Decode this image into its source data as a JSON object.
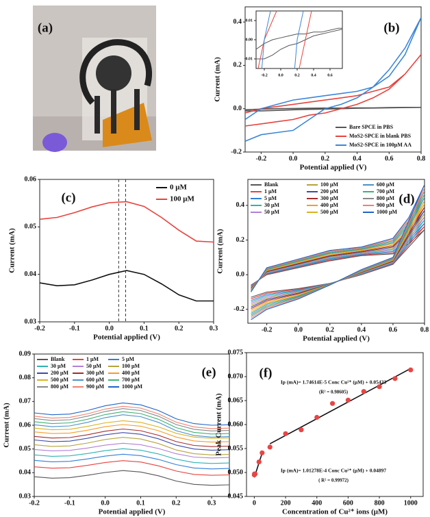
{
  "chart_data": [
    {
      "type": "image",
      "label": "(a)"
    },
    {
      "type": "line",
      "label": "(b)",
      "xlabel": "Potential applied (V)",
      "ylabel": "Current (mA)",
      "x": [
        -0.3,
        -0.2,
        -0.1,
        0,
        0.1,
        0.2,
        0.3,
        0.4,
        0.5,
        0.6,
        0.7,
        0.8,
        0.7,
        0.6,
        0.5,
        0.4,
        0.3,
        0.2,
        0.1,
        0,
        -0.1,
        -0.2,
        -0.3
      ],
      "series": [
        {
          "name": "Bare SPCE in PBS",
          "color": "#555555",
          "values": [
            -0.01,
            -0.01,
            -0.008,
            -0.005,
            -0.003,
            -0.002,
            0.0,
            0.002,
            0.003,
            0.004,
            0.005,
            0.006,
            0.006,
            0.005,
            0.004,
            0.004,
            0.003,
            0.003,
            0.002,
            0.001,
            0.0,
            -0.002,
            -0.005
          ]
        },
        {
          "name": "MoS2-SPCE in blank PBS",
          "color": "#e8413c",
          "values": [
            -0.08,
            -0.07,
            -0.06,
            -0.05,
            -0.03,
            -0.02,
            0.0,
            0.02,
            0.05,
            0.09,
            0.16,
            0.25,
            0.16,
            0.1,
            0.08,
            0.06,
            0.05,
            0.04,
            0.03,
            0.02,
            0.01,
            0.0,
            -0.02
          ]
        },
        {
          "name": "MoS2-SPCE in 100μM AA",
          "color": "#3a86d8",
          "values": [
            -0.15,
            -0.12,
            -0.11,
            -0.1,
            -0.05,
            0.0,
            0.02,
            0.05,
            0.1,
            0.18,
            0.28,
            0.42,
            0.25,
            0.15,
            0.1,
            0.08,
            0.07,
            0.06,
            0.05,
            0.04,
            0.02,
            0.0,
            -0.05
          ]
        }
      ],
      "xlim": [
        -0.3,
        0.8
      ],
      "ylim": [
        -0.2,
        0.47
      ],
      "xticks": [
        -0.2,
        {
          "value": 0,
          "label": "0.0"
        },
        0.2,
        0.4,
        0.6,
        0.8
      ],
      "yticks": [
        -0.2,
        {
          "value": 0,
          "label": "0.0"
        },
        0.2,
        0.4
      ],
      "legend": "lower right",
      "inset": {
        "xlim": [
          -0.3,
          0.75
        ],
        "ylim": [
          -0.015,
          0.015
        ],
        "xticks": [
          -0.2,
          {
            "value": 0,
            "label": "0.0"
          },
          0.2,
          0.4,
          0.6
        ],
        "yticks": [
          -0.01,
          {
            "value": 0,
            "label": "0.00"
          },
          0.01
        ]
      }
    },
    {
      "type": "line",
      "label": "(c)",
      "xlabel": "Potential applied (V)",
      "ylabel": "Current (mA)",
      "x": [
        -0.2,
        -0.15,
        -0.1,
        -0.05,
        0,
        0.05,
        0.1,
        0.15,
        0.2,
        0.25,
        0.3
      ],
      "series": [
        {
          "name": "0 μM",
          "color": "#111111",
          "values": [
            0.0382,
            0.0376,
            0.0378,
            0.0388,
            0.04,
            0.0408,
            0.04,
            0.038,
            0.0357,
            0.0344,
            0.0344
          ]
        },
        {
          "name": "100 μM",
          "color": "#e8413c",
          "values": [
            0.0516,
            0.052,
            0.053,
            0.0542,
            0.0551,
            0.0553,
            0.0543,
            0.052,
            0.0493,
            0.047,
            0.0468
          ]
        }
      ],
      "vlines": [
        0.027,
        0.047
      ],
      "xlim": [
        -0.2,
        0.3
      ],
      "ylim": [
        0.03,
        0.06
      ],
      "xticks": [
        -0.2,
        -0.1,
        {
          "value": 0,
          "label": "0.0"
        },
        0.1,
        0.2,
        0.3
      ],
      "yticks": [
        0.03,
        0.04,
        0.05,
        0.06
      ],
      "legend": "upper right"
    },
    {
      "type": "line",
      "label": "(d)",
      "xlabel": "Potential applied (V)",
      "ylabel": "Current (mA)",
      "x": [
        -0.3,
        -0.2,
        0,
        0.2,
        0.4,
        0.6,
        0.7,
        0.8,
        0.6,
        0.4,
        0.2,
        0,
        -0.2,
        -0.3
      ],
      "series": [
        {
          "name": "Blank",
          "color": "#555555",
          "values": [
            -0.06,
            0,
            0.04,
            0.08,
            0.11,
            0.12,
            0.18,
            0.26,
            0.06,
            0,
            -0.05,
            -0.08,
            -0.1,
            -0.13
          ]
        },
        {
          "name": "1 μM",
          "color": "#e8413c",
          "values": [
            -0.063,
            0.003,
            0.044,
            0.084,
            0.114,
            0.126,
            0.191,
            0.279,
            0.063,
            0.002,
            -0.051,
            -0.084,
            -0.107,
            -0.139
          ]
        },
        {
          "name": "5 μM",
          "color": "#2f7fd8",
          "values": [
            -0.066,
            0.006,
            0.047,
            0.089,
            0.117,
            0.133,
            0.201,
            0.297,
            0.066,
            0.004,
            -0.051,
            -0.089,
            -0.114,
            -0.149
          ]
        },
        {
          "name": "30 μM",
          "color": "#2bb3b0",
          "values": [
            -0.069,
            0.009,
            0.051,
            0.093,
            0.121,
            0.139,
            0.212,
            0.316,
            0.069,
            0.006,
            -0.052,
            -0.093,
            -0.121,
            -0.158
          ]
        },
        {
          "name": "50 μM",
          "color": "#b27fd6",
          "values": [
            -0.071,
            0.011,
            0.054,
            0.097,
            0.124,
            0.146,
            0.223,
            0.334,
            0.071,
            0.009,
            -0.053,
            -0.097,
            -0.129,
            -0.167
          ]
        },
        {
          "name": "100 μM",
          "color": "#b5a33a",
          "values": [
            -0.074,
            0.014,
            0.058,
            0.101,
            0.128,
            0.152,
            0.234,
            0.353,
            0.074,
            0.011,
            -0.054,
            -0.101,
            -0.136,
            -0.176
          ]
        },
        {
          "name": "200 μM",
          "color": "#3b4aa8",
          "values": [
            -0.077,
            0.017,
            0.061,
            0.106,
            0.131,
            0.159,
            0.244,
            0.371,
            0.077,
            0.013,
            -0.054,
            -0.106,
            -0.143,
            -0.186
          ]
        },
        {
          "name": "300 μM",
          "color": "#a52a2a",
          "values": [
            -0.08,
            0.02,
            0.065,
            0.11,
            0.135,
            0.165,
            0.255,
            0.39,
            0.08,
            0.015,
            -0.055,
            -0.11,
            -0.15,
            -0.195
          ]
        },
        {
          "name": "400 μM",
          "color": "#f39c2a",
          "values": [
            -0.083,
            0.023,
            0.069,
            0.114,
            0.139,
            0.171,
            0.266,
            0.409,
            0.083,
            0.017,
            -0.056,
            -0.114,
            -0.157,
            -0.204
          ]
        },
        {
          "name": "500 μM",
          "color": "#d9b21f",
          "values": [
            -0.086,
            0.026,
            0.072,
            0.119,
            0.142,
            0.178,
            0.276,
            0.427,
            0.086,
            0.019,
            -0.056,
            -0.119,
            -0.164,
            -0.214
          ]
        },
        {
          "name": "600 μM",
          "color": "#4a90c8",
          "values": [
            -0.089,
            0.029,
            0.076,
            0.123,
            0.146,
            0.184,
            0.287,
            0.446,
            0.089,
            0.021,
            -0.057,
            -0.123,
            -0.171,
            -0.223
          ]
        },
        {
          "name": "700 μM",
          "color": "#3cb371",
          "values": [
            -0.091,
            0.031,
            0.079,
            0.127,
            0.149,
            0.191,
            0.298,
            0.464,
            0.091,
            0.024,
            -0.058,
            -0.127,
            -0.179,
            -0.232
          ]
        },
        {
          "name": "800 μM",
          "color": "#888888",
          "values": [
            -0.094,
            0.034,
            0.083,
            0.131,
            0.153,
            0.197,
            0.309,
            0.483,
            0.094,
            0.026,
            -0.059,
            -0.131,
            -0.186,
            -0.241
          ]
        },
        {
          "name": "900 μM",
          "color": "#f08070",
          "values": [
            -0.097,
            0.037,
            0.086,
            0.136,
            0.156,
            0.204,
            0.319,
            0.501,
            0.097,
            0.028,
            -0.059,
            -0.136,
            -0.193,
            -0.251
          ]
        },
        {
          "name": "1000 μM",
          "color": "#1e63c8",
          "values": [
            -0.1,
            0.04,
            0.09,
            0.14,
            0.16,
            0.21,
            0.33,
            0.52,
            0.1,
            0.03,
            -0.06,
            -0.14,
            -0.2,
            -0.26
          ]
        }
      ],
      "xlim": [
        -0.32,
        0.8
      ],
      "ylim": [
        -0.28,
        0.55
      ],
      "xticks": [
        -0.2,
        {
          "value": 0,
          "label": "0.0"
        },
        0.2,
        0.4,
        0.6,
        0.8
      ],
      "yticks": [
        -0.2,
        {
          "value": 0,
          "label": "0.0"
        },
        0.2,
        0.4
      ],
      "legend": "top"
    },
    {
      "type": "line",
      "label": "(e)",
      "xlabel": "Potential applied (V)",
      "ylabel": "Current (mA)",
      "x": [
        -0.2,
        -0.15,
        -0.1,
        -0.05,
        0,
        0.05,
        0.1,
        0.15,
        0.2,
        0.25,
        0.3,
        0.35
      ],
      "series": [
        {
          "name": "Blank",
          "color": "#555555",
          "values": [
            0.0383,
            0.0377,
            0.0379,
            0.0389,
            0.0401,
            0.0409,
            0.0403,
            0.0387,
            0.0365,
            0.0351,
            0.0347,
            0.0349
          ]
        },
        {
          "name": "1 μM",
          "color": "#e8413c",
          "values": [
            0.0425,
            0.0419,
            0.0421,
            0.0431,
            0.0443,
            0.0451,
            0.0445,
            0.0429,
            0.0407,
            0.0393,
            0.0389,
            0.0391
          ]
        },
        {
          "name": "5 μM",
          "color": "#2f7fd8",
          "values": [
            0.0452,
            0.0446,
            0.0448,
            0.0458,
            0.047,
            0.0478,
            0.0472,
            0.0456,
            0.0434,
            0.042,
            0.0416,
            0.0418
          ]
        },
        {
          "name": "30 μM",
          "color": "#2bb3b0",
          "values": [
            0.0475,
            0.0469,
            0.0471,
            0.0481,
            0.0493,
            0.0501,
            0.0495,
            0.0479,
            0.0457,
            0.0443,
            0.0439,
            0.0441
          ]
        },
        {
          "name": "50 μM",
          "color": "#b27fd6",
          "values": [
            0.0498,
            0.0492,
            0.0494,
            0.0504,
            0.0516,
            0.0524,
            0.0518,
            0.0502,
            0.048,
            0.0466,
            0.0462,
            0.0464
          ]
        },
        {
          "name": "100 μM",
          "color": "#b5a33a",
          "values": [
            0.0518,
            0.0511,
            0.0513,
            0.0525,
            0.054,
            0.0549,
            0.0542,
            0.0523,
            0.0496,
            0.048,
            0.0475,
            0.0477
          ]
        },
        {
          "name": "200 μM",
          "color": "#3b4aa8",
          "values": [
            0.0538,
            0.0531,
            0.0533,
            0.0545,
            0.056,
            0.0569,
            0.0562,
            0.0543,
            0.0516,
            0.05,
            0.0495,
            0.0497
          ]
        },
        {
          "name": "300 μM",
          "color": "#a52a2a",
          "values": [
            0.0553,
            0.0546,
            0.0548,
            0.056,
            0.0575,
            0.0584,
            0.0577,
            0.0558,
            0.0531,
            0.0515,
            0.051,
            0.0512
          ]
        },
        {
          "name": "400 μM",
          "color": "#f39c2a",
          "values": [
            0.0572,
            0.0565,
            0.0567,
            0.0579,
            0.0594,
            0.0603,
            0.0596,
            0.0577,
            0.055,
            0.0534,
            0.0529,
            0.0531
          ]
        },
        {
          "name": "500 μM",
          "color": "#d9b21f",
          "values": [
            0.0588,
            0.0581,
            0.0583,
            0.0595,
            0.061,
            0.0619,
            0.0612,
            0.0593,
            0.0566,
            0.055,
            0.0545,
            0.0547
          ]
        },
        {
          "name": "600 μM",
          "color": "#4a90c8",
          "values": [
            0.0602,
            0.0594,
            0.0597,
            0.0612,
            0.0632,
            0.0644,
            0.0636,
            0.0612,
            0.0577,
            0.0557,
            0.055,
            0.0552
          ]
        },
        {
          "name": "700 μM",
          "color": "#3cb371",
          "values": [
            0.0615,
            0.0607,
            0.061,
            0.0625,
            0.0645,
            0.0657,
            0.0649,
            0.0625,
            0.059,
            0.057,
            0.0563,
            0.0565
          ]
        },
        {
          "name": "800 μM",
          "color": "#888888",
          "values": [
            0.0628,
            0.062,
            0.0623,
            0.0638,
            0.0658,
            0.067,
            0.0662,
            0.0638,
            0.0603,
            0.0583,
            0.0576,
            0.0578
          ]
        },
        {
          "name": "900 μM",
          "color": "#f08070",
          "values": [
            0.0638,
            0.063,
            0.0633,
            0.0648,
            0.0668,
            0.068,
            0.0672,
            0.0648,
            0.0613,
            0.0593,
            0.0586,
            0.0588
          ]
        },
        {
          "name": "1000 μM",
          "color": "#1e63c8",
          "values": [
            0.0652,
            0.0644,
            0.0647,
            0.0662,
            0.0682,
            0.0694,
            0.0686,
            0.0662,
            0.0627,
            0.0607,
            0.06,
            0.0602
          ]
        }
      ],
      "xlim": [
        -0.2,
        0.35
      ],
      "ylim": [
        0.03,
        0.09
      ],
      "xticks": [
        -0.2,
        -0.1,
        {
          "value": 0,
          "label": "0.0"
        },
        0.1,
        0.2,
        0.3
      ],
      "yticks": [
        0.03,
        0.04,
        0.05,
        0.06,
        0.07,
        0.08,
        0.09
      ],
      "legend": "top"
    },
    {
      "type": "scatter",
      "label": "(f)",
      "xlabel": "Concentration of Cu²⁺ ions (μM)",
      "ylabel": "Peak Current (mA)",
      "x": [
        0,
        1,
        5,
        30,
        50,
        100,
        200,
        300,
        400,
        500,
        600,
        700,
        800,
        900,
        1000
      ],
      "values": [
        0.0495,
        0.0497,
        0.0497,
        0.0522,
        0.0541,
        0.0553,
        0.0581,
        0.0589,
        0.0615,
        0.0644,
        0.0651,
        0.0669,
        0.0679,
        0.0696,
        0.0714
      ],
      "color": "#e84545",
      "fits": [
        {
          "x": [
            0,
            50
          ],
          "values": [
            0.04897,
            0.05403
          ]
        },
        {
          "x": [
            100,
            1000
          ],
          "values": [
            0.05598,
            0.07169
          ]
        }
      ],
      "annotations": [
        "Ip (mA)= 1.74614E-5 Conc Cu²⁺ (μM) + 0.05423",
        "(R² = 0.98605)",
        "Ip (mA)= 1.01278E-4 Conc Cu²⁺ (μM) + 0.04897",
        "( R² = 0.99972)"
      ],
      "xlim": [
        -50,
        1080
      ],
      "ylim": [
        0.045,
        0.075
      ],
      "xticks": [
        0,
        200,
        400,
        600,
        800,
        1000
      ],
      "yticks": [
        0.045,
        {
          "value": 0.05,
          "label": "0.050"
        },
        0.055,
        {
          "value": 0.06,
          "label": "0.060"
        },
        0.065,
        {
          "value": 0.07,
          "label": "0.070"
        },
        0.075
      ]
    }
  ]
}
